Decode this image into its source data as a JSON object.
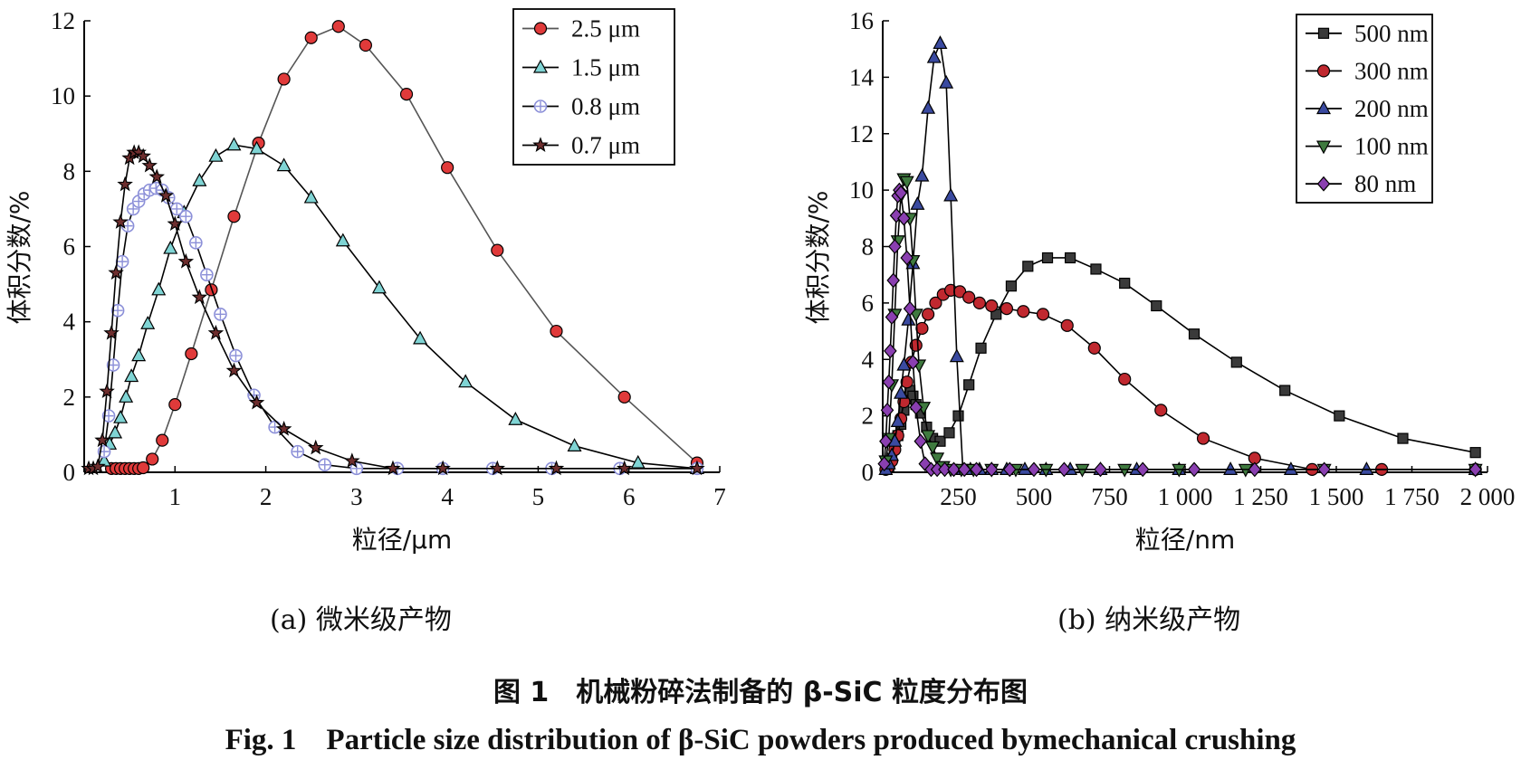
{
  "figure": {
    "caption_cn": "图 1　机械粉碎法制备的 β-SiC 粒度分布图",
    "caption_en": "Fig. 1　Particle size distribution of β-SiC powders produced bymechanical crushing"
  },
  "chart_data": [
    {
      "type": "line",
      "subcaption": "(a) 微米级产物",
      "xlabel": "粒径/μm",
      "ylabel": "体积分数/%",
      "xlim": [
        0,
        7
      ],
      "ylim": [
        0,
        12
      ],
      "x_ticks": [
        1,
        2,
        3,
        4,
        5,
        6,
        7
      ],
      "y_ticks": [
        0,
        2,
        4,
        6,
        8,
        10,
        12
      ],
      "x_tick_labels": [
        "1",
        "2",
        "3",
        "4",
        "5",
        "6",
        "7"
      ],
      "y_tick_labels": [
        "0",
        "2",
        "4",
        "6",
        "8",
        "10",
        "12"
      ],
      "legend_position": "top-right",
      "series": [
        {
          "name": "2.5 μm",
          "marker": "circle",
          "color": "#e03a3a",
          "line_color": "#555555",
          "x": [
            0.3,
            0.35,
            0.4,
            0.45,
            0.5,
            0.55,
            0.6,
            0.65,
            0.75,
            0.86,
            1.0,
            1.18,
            1.4,
            1.65,
            1.92,
            2.2,
            2.5,
            2.8,
            3.1,
            3.55,
            4.0,
            4.55,
            5.2,
            5.95,
            6.75
          ],
          "y": [
            0.1,
            0.1,
            0.1,
            0.1,
            0.1,
            0.1,
            0.1,
            0.12,
            0.35,
            0.85,
            1.8,
            3.15,
            4.85,
            6.8,
            8.75,
            10.45,
            11.55,
            11.85,
            11.35,
            10.05,
            8.1,
            5.9,
            3.75,
            2.0,
            0.25
          ]
        },
        {
          "name": "1.5 μm",
          "marker": "triangle-up",
          "color": "#7fd4d4",
          "line_color": "#000000",
          "x": [
            0.22,
            0.28,
            0.34,
            0.4,
            0.46,
            0.52,
            0.6,
            0.7,
            0.82,
            0.95,
            1.1,
            1.27,
            1.45,
            1.65,
            1.9,
            2.2,
            2.5,
            2.85,
            3.25,
            3.7,
            4.2,
            4.75,
            5.4,
            6.1,
            6.75
          ],
          "y": [
            0.3,
            0.75,
            1.05,
            1.45,
            2.0,
            2.55,
            3.1,
            3.95,
            4.85,
            5.95,
            6.9,
            7.75,
            8.4,
            8.7,
            8.6,
            8.15,
            7.3,
            6.15,
            4.9,
            3.55,
            2.4,
            1.4,
            0.7,
            0.25,
            0.1
          ]
        },
        {
          "name": "0.8 μm",
          "marker": "circle-plus",
          "color": "#8b8fd8",
          "line_color": "#000000",
          "x": [
            0.22,
            0.27,
            0.32,
            0.37,
            0.42,
            0.48,
            0.54,
            0.6,
            0.66,
            0.72,
            0.79,
            0.86,
            0.93,
            1.02,
            1.12,
            1.23,
            1.35,
            1.5,
            1.67,
            1.87,
            2.1,
            2.35,
            2.65,
            3.0,
            3.45,
            3.95,
            4.5,
            5.15,
            5.9,
            6.75
          ],
          "y": [
            0.55,
            1.5,
            2.85,
            4.3,
            5.6,
            6.55,
            7.0,
            7.2,
            7.4,
            7.5,
            7.55,
            7.5,
            7.3,
            7.0,
            6.8,
            6.1,
            5.25,
            4.2,
            3.1,
            2.05,
            1.2,
            0.55,
            0.2,
            0.1,
            0.1,
            0.1,
            0.1,
            0.1,
            0.1,
            0.1
          ]
        },
        {
          "name": "0.7 μm",
          "marker": "star",
          "color": "#6e2e2e",
          "line_color": "#000000",
          "x": [
            0.05,
            0.1,
            0.15,
            0.2,
            0.25,
            0.3,
            0.35,
            0.4,
            0.45,
            0.5,
            0.55,
            0.6,
            0.65,
            0.72,
            0.8,
            0.9,
            1.0,
            1.12,
            1.27,
            1.45,
            1.65,
            1.9,
            2.2,
            2.55,
            2.95,
            3.4,
            3.95,
            4.55,
            5.2,
            5.95,
            6.75
          ],
          "y": [
            0.1,
            0.1,
            0.15,
            0.85,
            2.15,
            3.7,
            5.3,
            6.65,
            7.65,
            8.35,
            8.5,
            8.5,
            8.4,
            8.15,
            7.85,
            7.35,
            6.6,
            5.6,
            4.65,
            3.7,
            2.7,
            1.85,
            1.15,
            0.65,
            0.3,
            0.1,
            0.1,
            0.1,
            0.1,
            0.1,
            0.1
          ]
        }
      ]
    },
    {
      "type": "line",
      "subcaption": "(b) 纳米级产物",
      "xlabel": "粒径/nm",
      "ylabel": "体积分数/%",
      "xlim": [
        0,
        2000
      ],
      "ylim": [
        0,
        16
      ],
      "x_ticks": [
        250,
        500,
        750,
        1000,
        1250,
        1500,
        1750,
        2000
      ],
      "y_ticks": [
        0,
        2,
        4,
        6,
        8,
        10,
        12,
        14,
        16
      ],
      "x_tick_labels": [
        "250",
        "500",
        "750",
        "1 000",
        "1 250",
        "1 500",
        "1 750",
        "2 000"
      ],
      "y_tick_labels": [
        "0",
        "2",
        "4",
        "6",
        "8",
        "10",
        "12",
        "14",
        "16"
      ],
      "legend_position": "top-right",
      "series": [
        {
          "name": "500 nm",
          "marker": "square",
          "color": "#3a3a3a",
          "line_color": "#000000",
          "x": [
            10,
            20,
            30,
            40,
            50,
            60,
            70,
            80,
            90,
            100,
            110,
            125,
            145,
            165,
            190,
            220,
            250,
            285,
            325,
            375,
            425,
            480,
            545,
            620,
            705,
            800,
            905,
            1030,
            1170,
            1330,
            1510,
            1720,
            1960
          ],
          "y": [
            0.1,
            0.2,
            0.5,
            0.9,
            1.3,
            1.7,
            2.2,
            2.6,
            2.9,
            2.7,
            2.4,
            2.1,
            1.6,
            1.2,
            1.1,
            1.4,
            2.0,
            3.1,
            4.4,
            5.6,
            6.6,
            7.3,
            7.6,
            7.6,
            7.2,
            6.7,
            5.9,
            4.9,
            3.9,
            2.9,
            2.0,
            1.2,
            0.7
          ]
        },
        {
          "name": "300 nm",
          "marker": "circle",
          "color": "#c0282f",
          "line_color": "#000000",
          "x": [
            10,
            20,
            30,
            40,
            50,
            60,
            70,
            80,
            95,
            110,
            130,
            150,
            175,
            200,
            225,
            255,
            285,
            320,
            360,
            410,
            465,
            530,
            610,
            700,
            800,
            920,
            1060,
            1230,
            1420,
            1650,
            1960
          ],
          "y": [
            0.1,
            0.2,
            0.4,
            0.8,
            1.3,
            1.9,
            2.5,
            3.2,
            3.9,
            4.5,
            5.1,
            5.6,
            6.0,
            6.3,
            6.45,
            6.4,
            6.2,
            6.0,
            5.9,
            5.8,
            5.7,
            5.6,
            5.2,
            4.4,
            3.3,
            2.2,
            1.2,
            0.5,
            0.1,
            0.1,
            0.1
          ]
        },
        {
          "name": "200 nm",
          "marker": "triangle-up",
          "color": "#3a4aa0",
          "line_color": "#000000",
          "x": [
            10,
            20,
            30,
            40,
            50,
            60,
            70,
            85,
            100,
            115,
            130,
            150,
            170,
            190,
            210,
            225,
            245,
            265,
            290,
            320,
            360,
            410,
            470,
            540,
            620,
            720,
            840,
            980,
            1150,
            1350,
            1600,
            1960
          ],
          "y": [
            0.1,
            0.3,
            0.6,
            1.1,
            1.8,
            2.8,
            3.8,
            5.4,
            7.4,
            9.5,
            10.5,
            12.9,
            14.7,
            15.2,
            13.8,
            9.8,
            4.1,
            0.1,
            0.1,
            0.1,
            0.1,
            0.1,
            0.1,
            0.1,
            0.1,
            0.1,
            0.1,
            0.1,
            0.1,
            0.1,
            0.1,
            0.1
          ]
        },
        {
          "name": "100 nm",
          "marker": "triangle-down",
          "color": "#3f7a3f",
          "line_color": "#000000",
          "x": [
            10,
            20,
            30,
            40,
            50,
            60,
            70,
            80,
            90,
            100,
            110,
            120,
            135,
            150,
            165,
            180,
            200,
            225,
            260,
            300,
            360,
            440,
            540,
            660,
            800,
            980,
            1200,
            1460,
            1960
          ],
          "y": [
            0.4,
            1.2,
            3.1,
            5.6,
            8.2,
            9.8,
            10.4,
            10.3,
            9.0,
            7.5,
            5.6,
            3.8,
            2.3,
            1.3,
            0.9,
            0.5,
            0.2,
            0.1,
            0.1,
            0.1,
            0.1,
            0.1,
            0.1,
            0.1,
            0.1,
            0.1,
            0.1,
            0.1,
            0.1
          ]
        },
        {
          "name": "80 nm",
          "marker": "diamond",
          "color": "#8a3fb0",
          "line_color": "#000000",
          "x": [
            5,
            10,
            15,
            20,
            25,
            30,
            35,
            40,
            45,
            50,
            55,
            60,
            70,
            80,
            90,
            100,
            110,
            125,
            140,
            160,
            180,
            205,
            235,
            270,
            310,
            360,
            420,
            500,
            600,
            720,
            860,
            1030,
            1230,
            1460,
            1960
          ],
          "y": [
            0.3,
            1.1,
            2.2,
            3.2,
            4.3,
            5.5,
            6.8,
            8.0,
            9.1,
            9.8,
            10.0,
            9.9,
            9.0,
            7.6,
            5.8,
            3.9,
            2.3,
            1.1,
            0.3,
            0.1,
            0.1,
            0.1,
            0.1,
            0.1,
            0.1,
            0.1,
            0.1,
            0.1,
            0.1,
            0.1,
            0.1,
            0.1,
            0.1,
            0.1,
            0.1
          ]
        }
      ]
    }
  ]
}
